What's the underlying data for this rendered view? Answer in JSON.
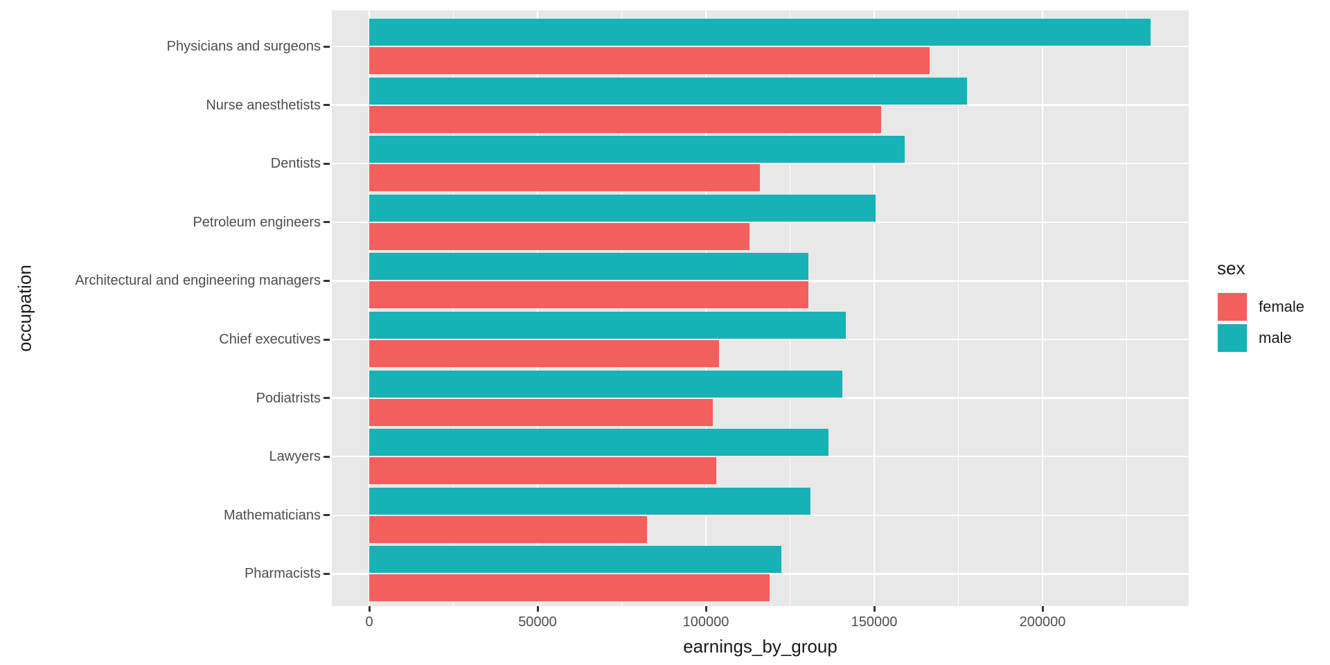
{
  "chart_data": {
    "type": "bar",
    "orientation": "horizontal",
    "xlabel": "earnings_by_group",
    "ylabel": "occupation",
    "legend_title": "sex",
    "legend_position": "right",
    "grid": true,
    "categories": [
      "Physicians and surgeons",
      "Nurse anesthetists",
      "Dentists",
      "Petroleum engineers",
      "Architectural and engineering managers",
      "Chief executives",
      "Podiatrists",
      "Lawyers",
      "Mathematicians",
      "Pharmacists"
    ],
    "series": [
      {
        "name": "male",
        "color": "#17B2B6",
        "values": [
          232000,
          177500,
          159000,
          150500,
          130500,
          141500,
          140500,
          136500,
          131000,
          122500
        ]
      },
      {
        "name": "female",
        "color": "#F25F5C",
        "values": [
          166500,
          152000,
          116000,
          113000,
          130500,
          104000,
          102000,
          103000,
          82500,
          119000
        ]
      }
    ],
    "legend_entries": [
      {
        "label": "female",
        "color": "#F25F5C"
      },
      {
        "label": "male",
        "color": "#17B2B6"
      }
    ],
    "x_ticks": [
      0,
      50000,
      100000,
      150000,
      200000
    ],
    "x_tick_labels": [
      "0",
      "50000",
      "100000",
      "150000",
      "200000"
    ],
    "x_minor_ticks": [
      25000,
      75000,
      125000,
      175000,
      225000
    ],
    "xlim": [
      0,
      243000
    ],
    "colors": {
      "panel_background": "#E8E8E8",
      "gridline": "#FFFFFF",
      "tick_mark": "#333333",
      "axis_text": "#4D4D4D",
      "title_text": "#1A1A1A"
    }
  }
}
